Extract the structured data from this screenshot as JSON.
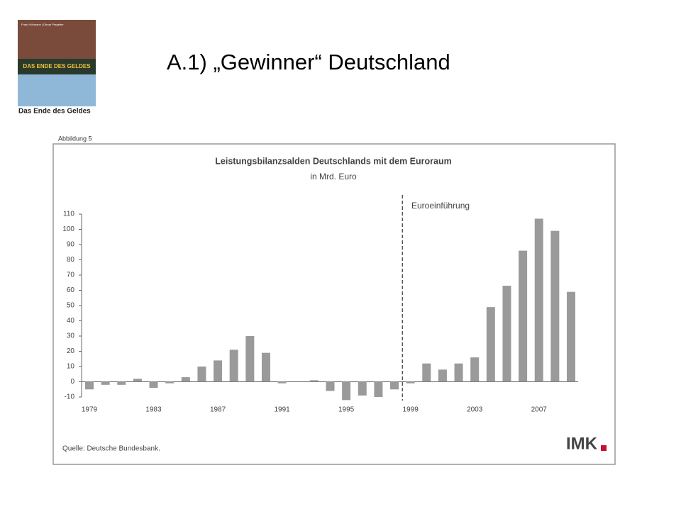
{
  "slide_title": "A.1)  „Gewinner“ Deutschland",
  "book": {
    "authors": "Franz Hörmann | Otmar Pregetter",
    "cover_title": "DAS ENDE DES GELDES",
    "caption": "Das Ende des Geldes"
  },
  "figure_label": "Abbildung 5",
  "source": "Quelle: Deutsche Bundesbank.",
  "logo": "IMK",
  "chart_data": {
    "type": "bar",
    "title": "Leistungsbilanzsalden Deutschlands mit dem Euroraum",
    "subtitle": "in Mrd. Euro",
    "annotation": "Euroeinführung",
    "categories": [
      "1979",
      null,
      null,
      null,
      "1983",
      null,
      null,
      null,
      "1987",
      null,
      null,
      null,
      "1991",
      null,
      null,
      null,
      "1995",
      null,
      null,
      null,
      "1999",
      null,
      null,
      null,
      "2003",
      null,
      null,
      null,
      "2007",
      null,
      null
    ],
    "values": [
      -5,
      -2,
      -2,
      2,
      -4,
      -1,
      3,
      10,
      14,
      21,
      30,
      19,
      -1,
      0,
      1,
      -6,
      -12,
      -9,
      -10,
      -5,
      -1,
      12,
      8,
      12,
      16,
      49,
      63,
      86,
      107,
      99,
      59
    ],
    "color": "#9a9a9a",
    "ylim": [
      -10,
      110
    ],
    "yticks": [
      -10,
      0,
      10,
      20,
      30,
      40,
      50,
      60,
      70,
      80,
      90,
      100,
      110
    ],
    "grid": false
  }
}
